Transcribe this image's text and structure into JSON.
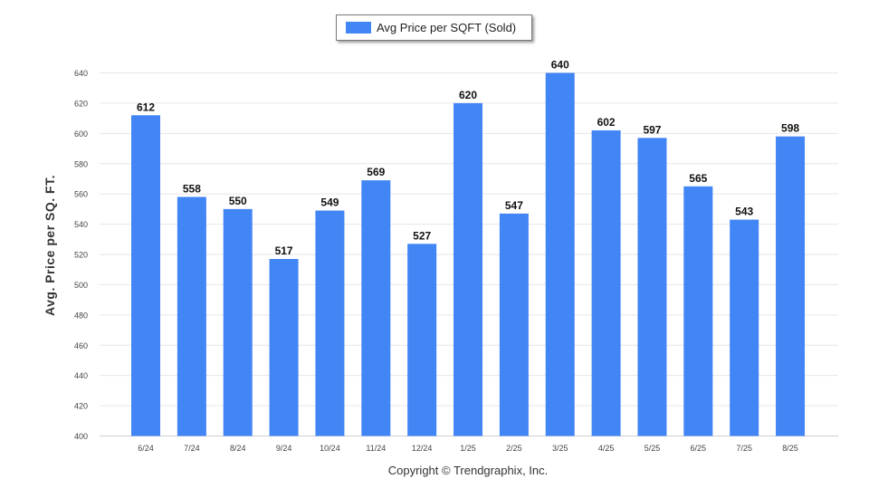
{
  "chart_data": {
    "type": "bar",
    "categories": [
      "6/24",
      "7/24",
      "8/24",
      "9/24",
      "10/24",
      "11/24",
      "12/24",
      "1/25",
      "2/25",
      "3/25",
      "4/25",
      "5/25",
      "6/25",
      "7/25",
      "8/25"
    ],
    "series": [
      {
        "name": "Avg Price per SQFT (Sold)",
        "values": [
          612,
          558,
          550,
          517,
          549,
          569,
          527,
          620,
          547,
          640,
          602,
          597,
          565,
          543,
          598
        ]
      }
    ],
    "ylabel": "Avg. Price per SQ. FT.",
    "xlabel": "",
    "ylim": [
      400,
      640
    ],
    "yticks": [
      400,
      420,
      440,
      460,
      480,
      500,
      520,
      540,
      560,
      580,
      600,
      620,
      640
    ],
    "grid": true,
    "legend_position": "top-center",
    "bar_color": "#4285f4",
    "data_labels": true
  },
  "copyright": "Copyright © Trendgraphix, Inc."
}
